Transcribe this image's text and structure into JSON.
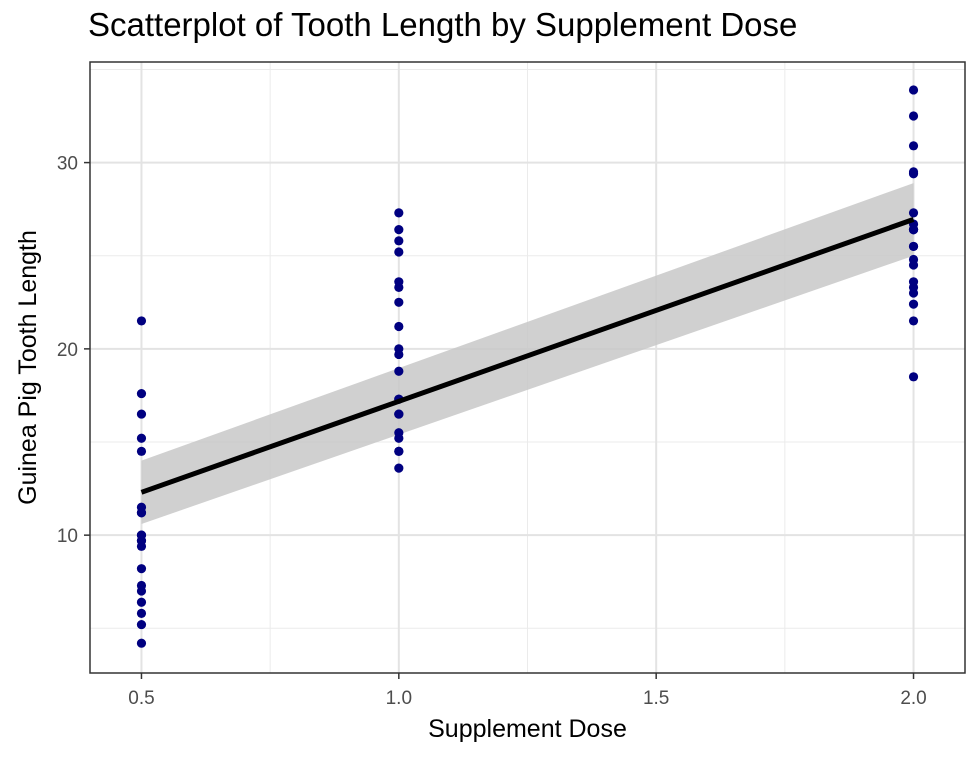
{
  "chart_data": {
    "type": "scatter",
    "title": "Scatterplot of Tooth Length by Supplement Dose",
    "xlabel": "Supplement Dose",
    "ylabel": "Guinea Pig Tooth Length",
    "xlim": [
      0.4,
      2.1
    ],
    "ylim": [
      2.6,
      35.4
    ],
    "x_ticks": [
      0.5,
      1.0,
      1.5,
      2.0
    ],
    "x_tick_labels": [
      "0.5",
      "1.0",
      "1.5",
      "2.0"
    ],
    "y_ticks": [
      10,
      20,
      30
    ],
    "y_tick_labels": [
      "10",
      "20",
      "30"
    ],
    "grid": true,
    "legend": "none",
    "point_color": "#000080",
    "line_color": "#000000",
    "ribbon_color": "#c8c8c8",
    "points": {
      "x": [
        0.5,
        0.5,
        0.5,
        0.5,
        0.5,
        0.5,
        0.5,
        0.5,
        0.5,
        0.5,
        0.5,
        0.5,
        0.5,
        0.5,
        0.5,
        0.5,
        0.5,
        0.5,
        0.5,
        0.5,
        1.0,
        1.0,
        1.0,
        1.0,
        1.0,
        1.0,
        1.0,
        1.0,
        1.0,
        1.0,
        1.0,
        1.0,
        1.0,
        1.0,
        1.0,
        1.0,
        1.0,
        1.0,
        1.0,
        1.0,
        2.0,
        2.0,
        2.0,
        2.0,
        2.0,
        2.0,
        2.0,
        2.0,
        2.0,
        2.0,
        2.0,
        2.0,
        2.0,
        2.0,
        2.0,
        2.0,
        2.0,
        2.0,
        2.0,
        2.0
      ],
      "y": [
        4.2,
        11.5,
        7.3,
        5.8,
        6.4,
        10.0,
        11.2,
        11.2,
        5.2,
        7.0,
        15.2,
        21.5,
        17.6,
        9.7,
        14.5,
        10.0,
        8.2,
        9.4,
        16.5,
        9.7,
        16.5,
        16.5,
        15.2,
        17.3,
        22.5,
        17.3,
        13.6,
        14.5,
        18.8,
        15.5,
        19.7,
        23.3,
        23.6,
        26.4,
        20.0,
        25.2,
        25.8,
        21.2,
        14.5,
        27.3,
        23.6,
        18.5,
        33.9,
        25.5,
        26.4,
        32.5,
        26.7,
        21.5,
        23.3,
        29.5,
        25.5,
        26.4,
        22.4,
        24.5,
        24.8,
        30.9,
        26.4,
        27.3,
        29.4,
        23.0
      ]
    },
    "fit": {
      "method": "linear",
      "x": [
        0.5,
        2.0
      ],
      "y": [
        12.3,
        26.95
      ],
      "ci_lower": [
        10.6,
        25.0
      ],
      "ci_upper": [
        14.0,
        28.9
      ]
    }
  }
}
